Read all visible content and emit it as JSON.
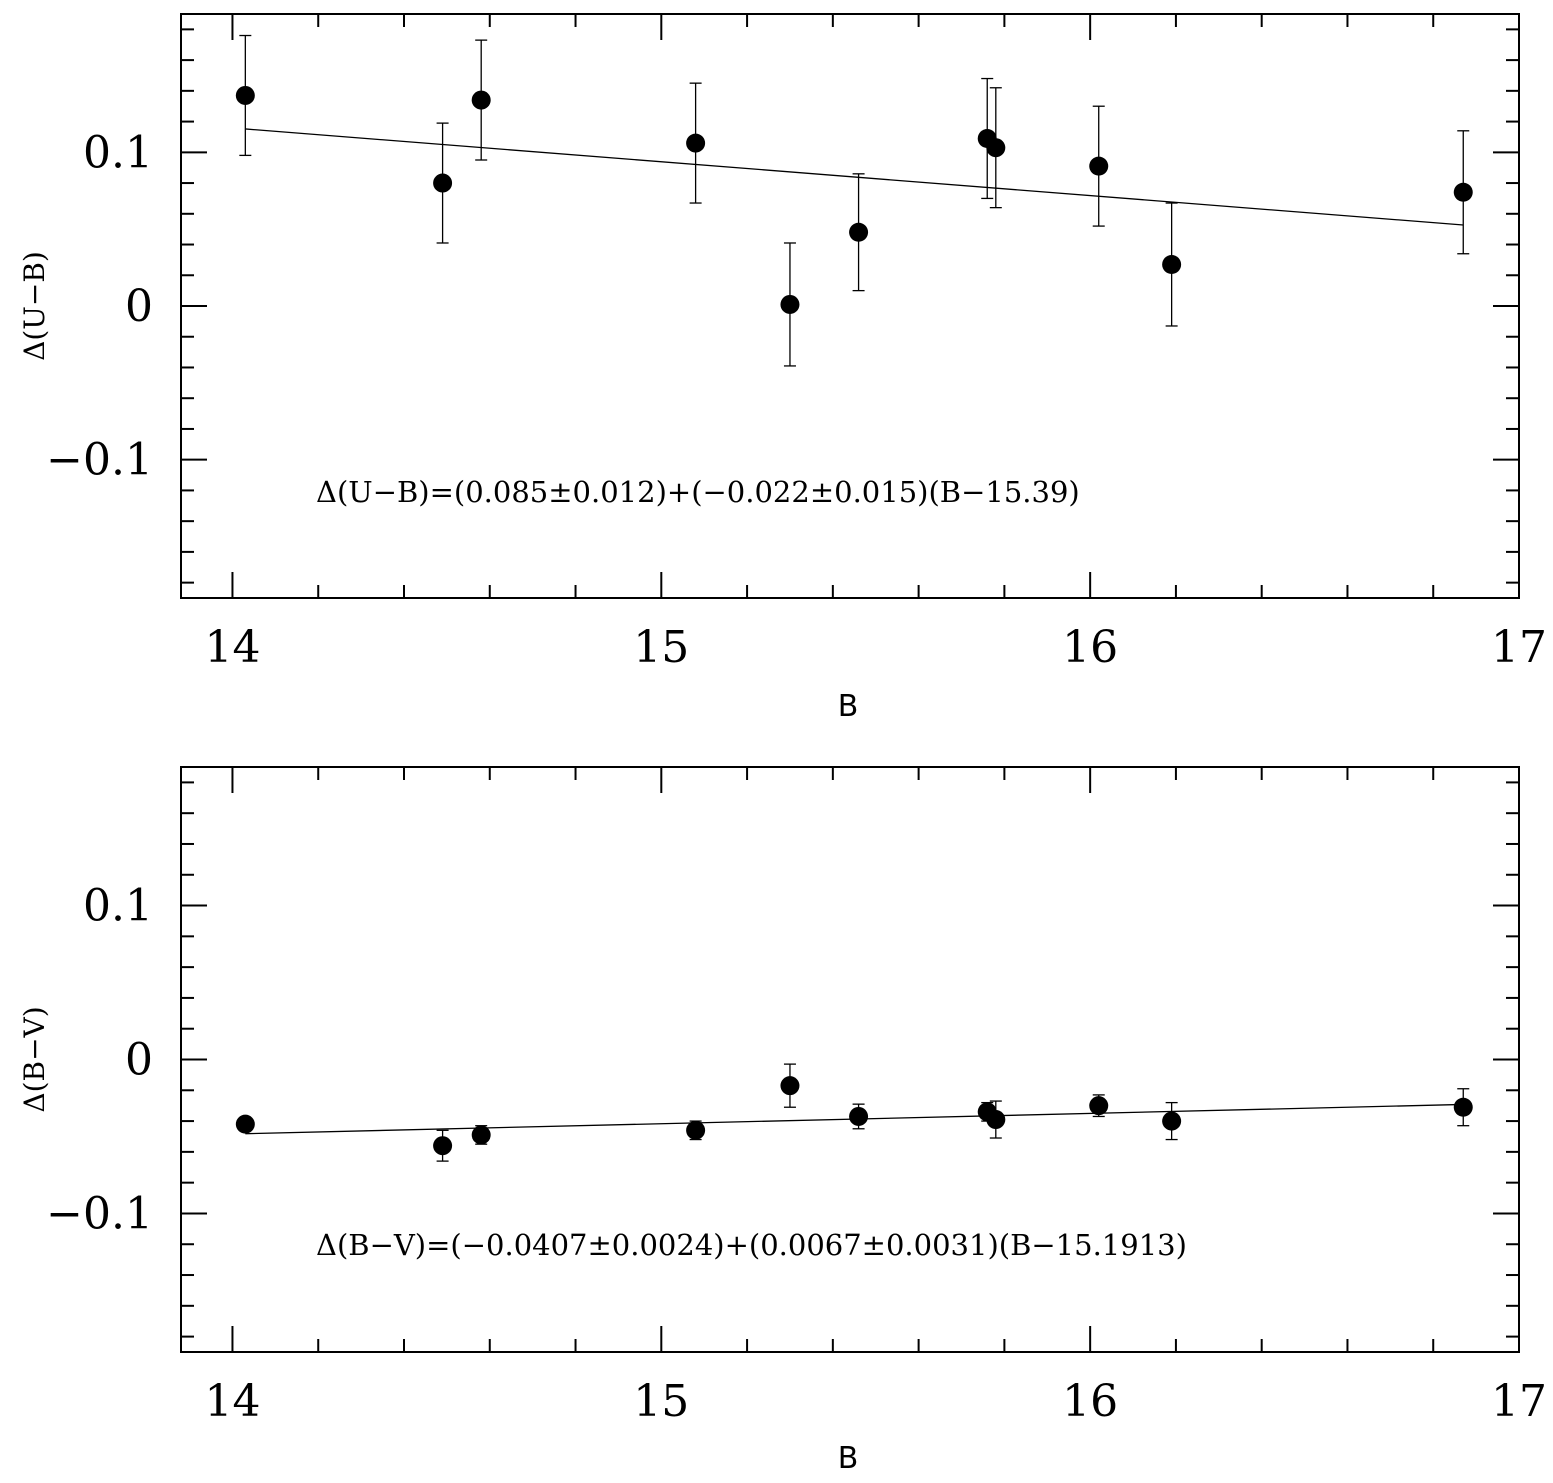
{
  "chart_data": [
    {
      "type": "scatter",
      "title": "",
      "xlabel": "B",
      "ylabel": "Δ(U−B)",
      "xlim": [
        13.88,
        17.0
      ],
      "ylim": [
        -0.19,
        0.19
      ],
      "x_ticks": [
        14,
        15,
        16,
        17
      ],
      "x_tick_labels": [
        "14",
        "15",
        "16",
        "17"
      ],
      "y_ticks": [
        -0.1,
        0,
        0.1
      ],
      "y_tick_labels": [
        "−0.1",
        "0",
        "0.1"
      ],
      "x_minor_step": 0.2,
      "y_minor_step": 0.02,
      "grid": false,
      "points": [
        {
          "x": 14.03,
          "y": 0.137,
          "err": 0.039
        },
        {
          "x": 14.49,
          "y": 0.08,
          "err": 0.039
        },
        {
          "x": 14.58,
          "y": 0.134,
          "err": 0.039
        },
        {
          "x": 15.08,
          "y": 0.106,
          "err": 0.039
        },
        {
          "x": 15.3,
          "y": 0.001,
          "err": 0.04
        },
        {
          "x": 15.46,
          "y": 0.048,
          "err": 0.038
        },
        {
          "x": 15.76,
          "y": 0.109,
          "err": 0.039
        },
        {
          "x": 15.78,
          "y": 0.103,
          "err": 0.039
        },
        {
          "x": 16.02,
          "y": 0.091,
          "err": 0.039
        },
        {
          "x": 16.19,
          "y": 0.027,
          "err": 0.04
        },
        {
          "x": 16.87,
          "y": 0.074,
          "err": 0.04
        }
      ],
      "fit_line": {
        "x": [
          14.03,
          16.87
        ],
        "y": [
          0.1152,
          0.0527
        ]
      },
      "annotation": "Δ(U−B)=(0.085±0.012)+(−0.022±0.015)(B−15.39)"
    },
    {
      "type": "scatter",
      "title": "",
      "xlabel": "B",
      "ylabel": "Δ(B−V)",
      "xlim": [
        13.88,
        17.0
      ],
      "ylim": [
        -0.19,
        0.19
      ],
      "x_ticks": [
        14,
        15,
        16,
        17
      ],
      "x_tick_labels": [
        "14",
        "15",
        "16",
        "17"
      ],
      "y_ticks": [
        -0.1,
        0,
        0.1
      ],
      "y_tick_labels": [
        "−0.1",
        "0",
        "0.1"
      ],
      "x_minor_step": 0.2,
      "y_minor_step": 0.02,
      "grid": false,
      "points": [
        {
          "x": 14.03,
          "y": -0.042,
          "err": 0.004
        },
        {
          "x": 14.49,
          "y": -0.056,
          "err": 0.01
        },
        {
          "x": 14.58,
          "y": -0.049,
          "err": 0.006
        },
        {
          "x": 15.08,
          "y": -0.046,
          "err": 0.006
        },
        {
          "x": 15.3,
          "y": -0.017,
          "err": 0.014
        },
        {
          "x": 15.46,
          "y": -0.037,
          "err": 0.008
        },
        {
          "x": 15.76,
          "y": -0.034,
          "err": 0.006
        },
        {
          "x": 15.78,
          "y": -0.039,
          "err": 0.012
        },
        {
          "x": 16.02,
          "y": -0.03,
          "err": 0.007
        },
        {
          "x": 16.19,
          "y": -0.04,
          "err": 0.012
        },
        {
          "x": 16.87,
          "y": -0.031,
          "err": 0.012
        }
      ],
      "fit_line": {
        "x": [
          14.03,
          16.87
        ],
        "y": [
          -0.0482,
          -0.0292
        ]
      },
      "annotation": "Δ(B−V)=(−0.0407±0.0024)+(0.0067±0.0031)(B−15.1913)"
    }
  ]
}
